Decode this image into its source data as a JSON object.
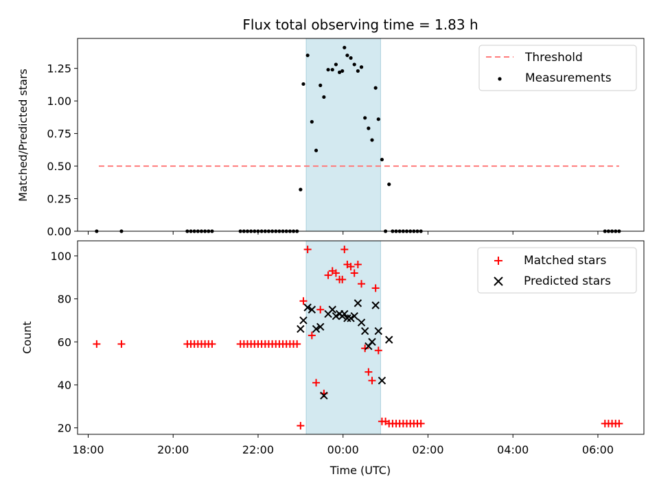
{
  "chart_data": [
    {
      "type": "scatter",
      "title": "Flux total observing time = 1.83 h",
      "ylabel": "Matched/Predicted stars",
      "xlabel": "",
      "xlim": [
        "17:45",
        "07:05"
      ],
      "ylim": [
        0,
        1.48
      ],
      "yticks": [
        0.0,
        0.25,
        0.5,
        0.75,
        1.0,
        1.25
      ],
      "ytick_labels": [
        "0.00",
        "0.25",
        "0.50",
        "0.75",
        "1.00",
        "1.25"
      ],
      "shaded_span": [
        "23:08",
        "00:53"
      ],
      "shaded_color": "#d3e9f0",
      "legend_position": "top-right",
      "threshold": {
        "name": "Threshold",
        "y": 0.5,
        "x": [
          "18:15",
          "06:30"
        ],
        "style": "dashed",
        "color": "#ff7a7a"
      },
      "series": [
        {
          "name": "Measurements",
          "marker": "dot",
          "color": "#000000",
          "points": [
            [
              "18:12",
              0
            ],
            [
              "18:47",
              0
            ],
            [
              "20:20",
              0
            ],
            [
              "20:25",
              0
            ],
            [
              "20:30",
              0
            ],
            [
              "20:35",
              0
            ],
            [
              "20:40",
              0
            ],
            [
              "20:45",
              0
            ],
            [
              "20:50",
              0
            ],
            [
              "20:55",
              0
            ],
            [
              "21:35",
              0
            ],
            [
              "21:40",
              0
            ],
            [
              "21:45",
              0
            ],
            [
              "21:50",
              0
            ],
            [
              "21:55",
              0
            ],
            [
              "22:00",
              0
            ],
            [
              "22:05",
              0
            ],
            [
              "22:10",
              0
            ],
            [
              "22:15",
              0
            ],
            [
              "22:20",
              0
            ],
            [
              "22:25",
              0
            ],
            [
              "22:30",
              0
            ],
            [
              "22:35",
              0
            ],
            [
              "22:40",
              0
            ],
            [
              "22:45",
              0
            ],
            [
              "22:50",
              0
            ],
            [
              "22:55",
              0
            ],
            [
              "23:00",
              0.32
            ],
            [
              "23:04",
              1.13
            ],
            [
              "23:10",
              1.35
            ],
            [
              "23:16",
              0.84
            ],
            [
              "23:22",
              0.62
            ],
            [
              "23:28",
              1.12
            ],
            [
              "23:33",
              1.03
            ],
            [
              "23:39",
              1.24
            ],
            [
              "23:45",
              1.24
            ],
            [
              "23:50",
              1.28
            ],
            [
              "23:55",
              1.22
            ],
            [
              "23:59",
              1.23
            ],
            [
              "00:02",
              1.41
            ],
            [
              "00:06",
              1.35
            ],
            [
              "00:11",
              1.33
            ],
            [
              "00:16",
              1.28
            ],
            [
              "00:21",
              1.23
            ],
            [
              "00:26",
              1.26
            ],
            [
              "00:31",
              0.87
            ],
            [
              "00:36",
              0.79
            ],
            [
              "00:41",
              0.7
            ],
            [
              "00:46",
              1.1
            ],
            [
              "00:50",
              0.86
            ],
            [
              "00:55",
              0.55
            ],
            [
              "01:00",
              0
            ],
            [
              "01:05",
              0.36
            ],
            [
              "01:10",
              0
            ],
            [
              "01:15",
              0
            ],
            [
              "01:20",
              0
            ],
            [
              "01:25",
              0
            ],
            [
              "01:30",
              0
            ],
            [
              "01:35",
              0
            ],
            [
              "01:40",
              0
            ],
            [
              "01:45",
              0
            ],
            [
              "01:50",
              0
            ],
            [
              "06:10",
              0
            ],
            [
              "06:15",
              0
            ],
            [
              "06:20",
              0
            ],
            [
              "06:25",
              0
            ],
            [
              "06:30",
              0
            ]
          ]
        }
      ]
    },
    {
      "type": "scatter",
      "title": "",
      "ylabel": "Count",
      "xlabel": "Time (UTC)",
      "xlim": [
        "17:45",
        "07:05"
      ],
      "ylim": [
        17,
        107
      ],
      "yticks": [
        20,
        40,
        60,
        80,
        100
      ],
      "ytick_labels": [
        "20",
        "40",
        "60",
        "80",
        "100"
      ],
      "xticks": [
        "18:00",
        "20:00",
        "22:00",
        "00:00",
        "02:00",
        "04:00",
        "06:00"
      ],
      "xtick_labels": [
        "18:00",
        "20:00",
        "22:00",
        "00:00",
        "02:00",
        "04:00",
        "06:00"
      ],
      "shaded_span": [
        "23:08",
        "00:53"
      ],
      "shaded_color": "#d3e9f0",
      "legend_position": "top-right",
      "series": [
        {
          "name": "Matched stars",
          "marker": "plus",
          "color": "#ff0000",
          "points": [
            [
              "18:12",
              59
            ],
            [
              "18:47",
              59
            ],
            [
              "20:20",
              59
            ],
            [
              "20:25",
              59
            ],
            [
              "20:30",
              59
            ],
            [
              "20:35",
              59
            ],
            [
              "20:40",
              59
            ],
            [
              "20:45",
              59
            ],
            [
              "20:50",
              59
            ],
            [
              "20:55",
              59
            ],
            [
              "21:35",
              59
            ],
            [
              "21:40",
              59
            ],
            [
              "21:45",
              59
            ],
            [
              "21:50",
              59
            ],
            [
              "21:55",
              59
            ],
            [
              "22:00",
              59
            ],
            [
              "22:05",
              59
            ],
            [
              "22:10",
              59
            ],
            [
              "22:15",
              59
            ],
            [
              "22:20",
              59
            ],
            [
              "22:25",
              59
            ],
            [
              "22:30",
              59
            ],
            [
              "22:35",
              59
            ],
            [
              "22:40",
              59
            ],
            [
              "22:45",
              59
            ],
            [
              "22:50",
              59
            ],
            [
              "22:55",
              59
            ],
            [
              "23:00",
              21
            ],
            [
              "23:04",
              79
            ],
            [
              "23:10",
              103
            ],
            [
              "23:16",
              63
            ],
            [
              "23:22",
              41
            ],
            [
              "23:28",
              75
            ],
            [
              "23:33",
              36
            ],
            [
              "23:39",
              91
            ],
            [
              "23:45",
              93
            ],
            [
              "23:50",
              92
            ],
            [
              "23:55",
              89
            ],
            [
              "23:59",
              89
            ],
            [
              "00:02",
              103
            ],
            [
              "00:06",
              96
            ],
            [
              "00:11",
              95
            ],
            [
              "00:16",
              92
            ],
            [
              "00:21",
              96
            ],
            [
              "00:26",
              87
            ],
            [
              "00:31",
              57
            ],
            [
              "00:36",
              46
            ],
            [
              "00:41",
              42
            ],
            [
              "00:46",
              85
            ],
            [
              "00:50",
              56
            ],
            [
              "00:55",
              23
            ],
            [
              "01:00",
              23
            ],
            [
              "01:05",
              22
            ],
            [
              "01:10",
              22
            ],
            [
              "01:15",
              22
            ],
            [
              "01:20",
              22
            ],
            [
              "01:25",
              22
            ],
            [
              "01:30",
              22
            ],
            [
              "01:35",
              22
            ],
            [
              "01:40",
              22
            ],
            [
              "01:45",
              22
            ],
            [
              "01:50",
              22
            ],
            [
              "06:10",
              22
            ],
            [
              "06:15",
              22
            ],
            [
              "06:20",
              22
            ],
            [
              "06:25",
              22
            ],
            [
              "06:30",
              22
            ]
          ]
        },
        {
          "name": "Predicted stars",
          "marker": "x",
          "color": "#000000",
          "points": [
            [
              "23:00",
              66
            ],
            [
              "23:04",
              70
            ],
            [
              "23:10",
              76
            ],
            [
              "23:16",
              75
            ],
            [
              "23:22",
              66
            ],
            [
              "23:28",
              67
            ],
            [
              "23:33",
              35
            ],
            [
              "23:39",
              73
            ],
            [
              "23:45",
              75
            ],
            [
              "23:50",
              72
            ],
            [
              "23:55",
              73
            ],
            [
              "23:59",
              72
            ],
            [
              "00:02",
              73
            ],
            [
              "00:06",
              71
            ],
            [
              "00:11",
              71
            ],
            [
              "00:16",
              72
            ],
            [
              "00:21",
              78
            ],
            [
              "00:26",
              69
            ],
            [
              "00:31",
              65
            ],
            [
              "00:36",
              58
            ],
            [
              "00:41",
              60
            ],
            [
              "00:46",
              77
            ],
            [
              "00:50",
              65
            ],
            [
              "00:55",
              42
            ],
            [
              "01:05",
              61
            ]
          ]
        }
      ]
    }
  ]
}
